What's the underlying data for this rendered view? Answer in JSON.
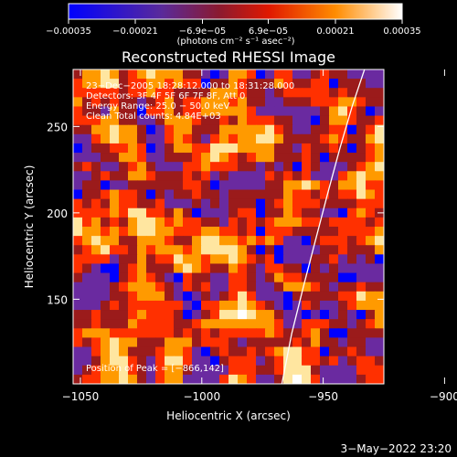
{
  "chart_data": {
    "type": "heatmap",
    "title": "Reconstructed RHESSI Image",
    "xlabel": "Heliocentric X (arcsec)",
    "ylabel": "Heliocentric Y (arcsec)",
    "xlim": [
      -1053,
      -925
    ],
    "ylim": [
      101,
      283
    ],
    "xticks": [
      -1050,
      -1000,
      -950,
      -900
    ],
    "xtick_labels": [
      "−1050",
      "−1000",
      "−950",
      "−900"
    ],
    "yticks": [
      150,
      200,
      250
    ],
    "ytick_labels": [
      "150",
      "200",
      "250"
    ],
    "colorbar": {
      "range": [
        -0.00035,
        0.00035
      ],
      "ticks": [
        -0.00035,
        -0.00021,
        -6.9e-05,
        6.9e-05,
        0.00021,
        0.00035
      ],
      "tick_labels": [
        "−0.00035",
        "−0.00021",
        "−6.9e−05",
        "6.9e−05",
        "0.00021",
        "0.00035"
      ],
      "unit_label": "(photons cm⁻² s⁻¹ asec⁻²)",
      "colors": [
        "#0000ff",
        "#6a2aa0",
        "#9b1b1b",
        "#ff3000",
        "#ff9a00",
        "#ffffff"
      ]
    },
    "annotations": {
      "time": "23−Dec−2005 18:28:12.000 to 18:31:28.000",
      "detectors": "Detectors: 3F 4F 5F 6F 7F 8F, Att 0",
      "energy": "Energy Range: 25.0 − 50.0 keV",
      "clean": "Clean    Total counts: 4.84E+03",
      "peak": "Position of Peak = [−866,142]"
    },
    "peak_position": [
      -866,
      142
    ],
    "limb_curve": {
      "x": [
        -967,
        -963,
        -958,
        -953,
        -948,
        -943,
        -938,
        -933
      ],
      "y": [
        101,
        130,
        158,
        185,
        212,
        238,
        262,
        283
      ]
    },
    "grid": false
  },
  "footer": {
    "date": "3−May−2022 23:20"
  }
}
